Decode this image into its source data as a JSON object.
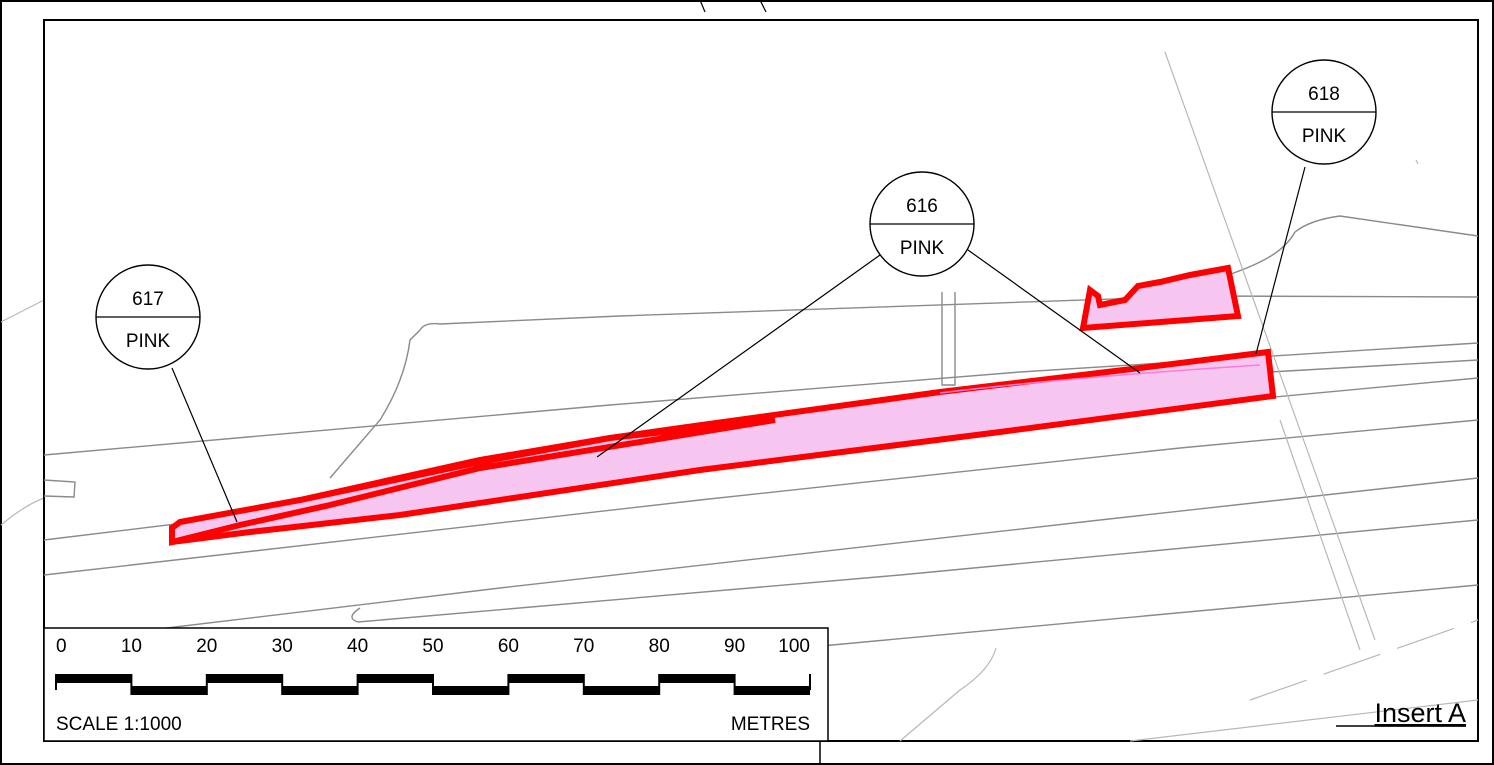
{
  "plots": [
    {
      "number": "617",
      "colour_label": "PINK"
    },
    {
      "number": "616",
      "colour_label": "PINK"
    },
    {
      "number": "618",
      "colour_label": "PINK"
    }
  ],
  "scale_bar": {
    "ticks": [
      "0",
      "10",
      "20",
      "30",
      "40",
      "50",
      "60",
      "70",
      "80",
      "90",
      "100"
    ],
    "scale_text": "SCALE 1:1000",
    "unit_text": "METRES"
  },
  "insert_label": "Insert A",
  "colors": {
    "parcel_fill": "#f7c6f0",
    "parcel_outline": "#ff0000",
    "roads": "#8a8a8a"
  }
}
